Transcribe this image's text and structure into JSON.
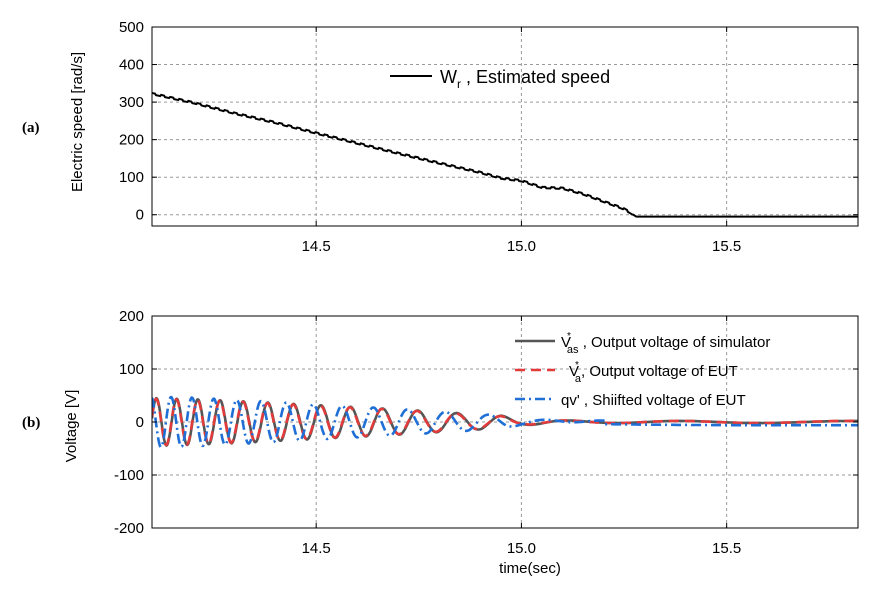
{
  "chart_data": [
    {
      "panel_tag": "(a)",
      "type": "line",
      "xlabel": "",
      "ylabel": "Electric speed [rad/s]",
      "xlim": [
        14.1,
        15.82
      ],
      "ylim": [
        -30,
        500
      ],
      "xticks": [
        "14.5",
        "15.0",
        "15.5"
      ],
      "xtick_values": [
        14.5,
        15.0,
        15.5
      ],
      "yticks": [
        "0",
        "100",
        "200",
        "300",
        "400",
        "500"
      ],
      "ytick_values": [
        0,
        100,
        200,
        300,
        400,
        500
      ],
      "grid": true,
      "legend_position": "top-center",
      "series": [
        {
          "name": "W",
          "name_sub": "r",
          "name_rest": " , Estimated speed",
          "color": "#000000",
          "x": [
            14.1,
            14.2,
            14.3,
            14.4,
            14.5,
            14.6,
            14.7,
            14.8,
            14.9,
            14.95,
            15.0,
            15.05,
            15.1,
            15.15,
            15.2,
            15.25,
            15.28,
            15.3,
            15.5,
            15.82
          ],
          "y": [
            322,
            298,
            270,
            245,
            217,
            190,
            163,
            137,
            112,
            97,
            90,
            72,
            70,
            55,
            35,
            15,
            -5,
            -5,
            -5,
            -5
          ]
        }
      ]
    },
    {
      "panel_tag": "(b)",
      "type": "line",
      "xlabel": "time(sec)",
      "ylabel": "Voltage [V]",
      "xlim": [
        14.1,
        15.82
      ],
      "ylim": [
        -200,
        200
      ],
      "xticks": [
        "14.5",
        "15.0",
        "15.5"
      ],
      "xtick_values": [
        14.5,
        15.0,
        15.5
      ],
      "yticks": [
        "-200",
        "-100",
        "0",
        "100",
        "200"
      ],
      "ytick_values": [
        -200,
        -100,
        0,
        100,
        200
      ],
      "grid": true,
      "legend_position": "top-right",
      "series": [
        {
          "name": "V",
          "name_sup": "*",
          "name_sub": "as",
          "name_rest": " , Output voltage of simulator",
          "color": "#555555",
          "style": "solid",
          "x": [
            14.1,
            14.2,
            14.3,
            14.4,
            14.5,
            14.6,
            14.7,
            14.8,
            14.9,
            14.95,
            15.0,
            15.1,
            15.2,
            15.3,
            15.5,
            15.82
          ],
          "amplitude": [
            45,
            43,
            40,
            36,
            32,
            28,
            24,
            19,
            14,
            12,
            6,
            3,
            2,
            2,
            2,
            2
          ],
          "period": [
            0.048,
            0.052,
            0.057,
            0.062,
            0.068,
            0.076,
            0.085,
            0.096,
            0.11,
            0.12,
            0.15,
            0.2,
            0.25,
            0.3,
            0.4,
            0.5
          ]
        },
        {
          "name": "V",
          "name_sup": "*",
          "name_sub": "a",
          "name_rest": ", Output voltage of EUT",
          "color": "#e23b3b",
          "style": "dash",
          "x": [
            14.1,
            14.2,
            14.3,
            14.4,
            14.5,
            14.6,
            14.7,
            14.8,
            14.9,
            14.95,
            15.0,
            15.1,
            15.2,
            15.3,
            15.5,
            15.82
          ],
          "amplitude": [
            44,
            42,
            39,
            35,
            31,
            27,
            23,
            18,
            13,
            11,
            5,
            3,
            2,
            2,
            2,
            2
          ],
          "period": [
            0.048,
            0.052,
            0.057,
            0.062,
            0.068,
            0.076,
            0.085,
            0.096,
            0.11,
            0.12,
            0.15,
            0.2,
            0.25,
            0.3,
            0.4,
            0.5
          ]
        },
        {
          "name": "qv'",
          "name_rest": " , Shiifted voltage of EUT",
          "color": "#1f6fd6",
          "style": "dashdot",
          "x": [
            14.1,
            14.2,
            14.3,
            14.4,
            14.5,
            14.6,
            14.7,
            14.8,
            14.9,
            14.95,
            15.0,
            15.1,
            15.2,
            15.3,
            15.5,
            15.82
          ],
          "amplitude": [
            48,
            46,
            42,
            38,
            33,
            29,
            25,
            20,
            15,
            12,
            6,
            3,
            -4,
            -5,
            -6,
            -6
          ],
          "period": [
            0.048,
            0.052,
            0.057,
            0.062,
            0.068,
            0.076,
            0.085,
            0.096,
            0.11,
            0.12,
            0.15,
            0.2,
            0.25,
            0.3,
            0.4,
            0.5
          ]
        }
      ]
    }
  ]
}
